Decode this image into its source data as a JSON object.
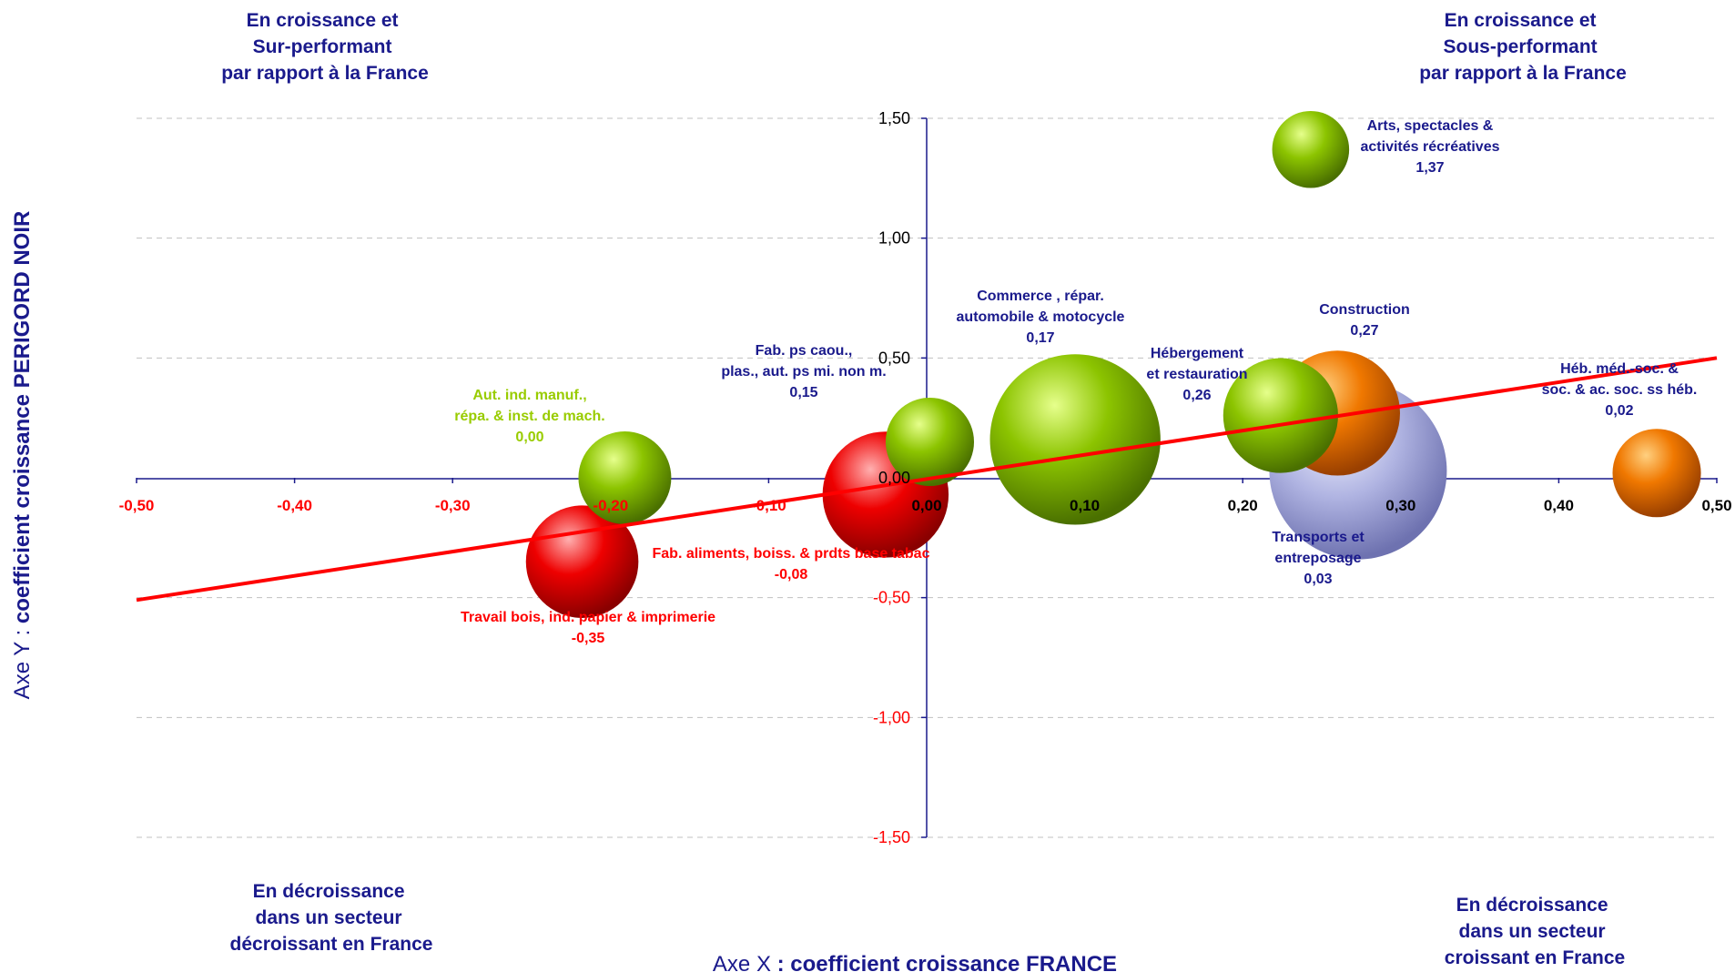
{
  "colors": {
    "navy": "#1a1a8c",
    "red": "#ff0000",
    "olive": "#99cc00",
    "grid": "#c0c0c0",
    "bubble_green": "#7fb000",
    "bubble_red": "#e00000",
    "bubble_orange": "#f07800",
    "bubble_lavender": "#a0a4d8"
  },
  "quadrants": {
    "top_left": [
      "En croissance et",
      "Sur-performant",
      "par rapport à la France"
    ],
    "top_right": [
      "En croissance et",
      "Sous-performant",
      "par rapport à la France"
    ],
    "bottom_left": [
      "En décroissance",
      "dans un secteur",
      "décroissant en France"
    ],
    "bottom_right": [
      "En décroissance",
      "dans un secteur",
      "croissant en France"
    ]
  },
  "chart_data": {
    "type": "bubble",
    "xlabel": {
      "prefix": "Axe X ",
      "bold": ": coefficient croissance FRANCE"
    },
    "ylabel": {
      "prefix": "Axe Y : ",
      "bold": "coefficient croissance PERIGORD NOIR"
    },
    "xlim": [
      -0.5,
      0.5
    ],
    "ylim": [
      -1.5,
      1.5
    ],
    "x_ticks": [
      "-0,50",
      "-0,40",
      "-0,30",
      "-0,20",
      "-0,10",
      "0,00",
      "0,10",
      "0,20",
      "0,30",
      "0,40",
      "0,50"
    ],
    "x_tick_values": [
      -0.5,
      -0.4,
      -0.3,
      -0.2,
      -0.1,
      0,
      0.1,
      0.2,
      0.3,
      0.4,
      0.5
    ],
    "y_ticks": [
      "1,50",
      "1,00",
      "0,50",
      "0,00",
      "-0,50",
      "-1,00",
      "-1,50"
    ],
    "y_tick_values": [
      1.5,
      1.0,
      0.5,
      0,
      -0.5,
      -1.0,
      -1.5
    ],
    "grid": "horizontal dashed",
    "trendline": {
      "from": [
        -0.5,
        -0.51
      ],
      "to": [
        0.5,
        0.5
      ],
      "color": "#ff0000"
    },
    "bubbles": [
      {
        "name": [
          "Arts, spectacles &",
          "activités récréatives"
        ],
        "value_label": "1,37",
        "x": 0.243,
        "y": 1.37,
        "size": 2.2,
        "color": "green",
        "label_color": "navy"
      },
      {
        "name": [
          "Commerce , répar.",
          "automobile & motocycle"
        ],
        "value_label": "0,17",
        "x": 0.094,
        "y": 0.16,
        "size": 10.8,
        "color": "green",
        "label_color": "navy"
      },
      {
        "name": [
          "Construction"
        ],
        "value_label": "0,27",
        "x": 0.26,
        "y": 0.27,
        "size": 5.8,
        "color": "orange",
        "label_color": "navy"
      },
      {
        "name": [
          "Hébergement",
          "et restauration"
        ],
        "value_label": "0,26",
        "x": 0.224,
        "y": 0.26,
        "size": 4.9,
        "color": "green",
        "label_color": "navy"
      },
      {
        "name": [
          "Transports et",
          "entreposage"
        ],
        "value_label": "0,03",
        "x": 0.273,
        "y": 0.03,
        "size": 11.7,
        "color": "lavender",
        "label_color": "navy"
      },
      {
        "name": [
          "Héb. méd.-soc. &",
          "soc. & ac. soc. ss héb."
        ],
        "value_label": "0,02",
        "x": 0.462,
        "y": 0.02,
        "size": 2.9,
        "color": "orange",
        "label_color": "navy"
      },
      {
        "name": [
          "Fab. ps caou.,",
          "plas., aut. ps mi. non m."
        ],
        "value_label": "0,15",
        "x": 0.002,
        "y": 0.15,
        "size": 2.9,
        "color": "green",
        "label_color": "navy"
      },
      {
        "name": [
          "Aut. ind. manuf.,",
          "répa. & inst. de mach."
        ],
        "value_label": "0,00",
        "x": -0.191,
        "y": 0.0,
        "size": 3.2,
        "color": "green",
        "label_color": "olive"
      },
      {
        "name": [
          "Fab. aliments, boiss. & prdts base tabac"
        ],
        "value_label": "-0,08",
        "x": -0.026,
        "y": -0.07,
        "size": 5.9,
        "color": "red",
        "label_color": "red"
      },
      {
        "name": [
          "Travail bois, ind. papier & imprimerie"
        ],
        "value_label": "-0,35",
        "x": -0.218,
        "y": -0.35,
        "size": 4.7,
        "color": "red",
        "label_color": "red"
      }
    ]
  }
}
